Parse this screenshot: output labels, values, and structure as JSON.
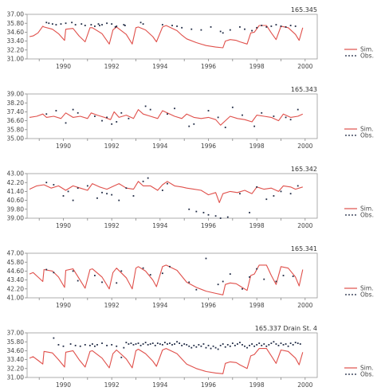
{
  "chart_data": [
    {
      "type": "line",
      "title": "165.345",
      "xlim": [
        1988.5,
        2000.5
      ],
      "ylim": [
        31.0,
        37.0
      ],
      "yticks": [
        "37.00",
        "35.80",
        "34.60",
        "33.40",
        "32.20",
        "31.00"
      ],
      "xticks": [
        "1990",
        "1992",
        "1994",
        "1996",
        "1998",
        "2000"
      ],
      "legend": [
        "Sim.",
        "Obs."
      ],
      "legend_position": "right",
      "colors": {
        "sim": "#e0504b",
        "obs": "#1f2a44"
      },
      "sim": {
        "x": [
          1988.6,
          1988.75,
          1988.95,
          1989.15,
          1989.2,
          1989.55,
          1989.8,
          1990.05,
          1990.1,
          1990.4,
          1990.65,
          1990.9,
          1991.1,
          1991.2,
          1991.6,
          1991.9,
          1992.05,
          1992.2,
          1992.6,
          1992.85,
          1993.0,
          1993.1,
          1993.4,
          1993.7,
          1993.85,
          1994.1,
          1994.25,
          1994.7,
          1994.9,
          1995.1,
          1995.5,
          1995.9,
          1996.3,
          1996.6,
          1996.7,
          1996.9,
          1997.15,
          1997.3,
          1997.6,
          1997.75,
          1997.9,
          1998.1,
          1998.4,
          1998.6,
          1998.8,
          1999.0,
          1999.3,
          1999.6,
          1999.75,
          1999.9
        ],
        "y": [
          34.0,
          34.1,
          34.5,
          35.4,
          35.3,
          35.0,
          34.4,
          33.5,
          35.0,
          35.1,
          34.1,
          33.3,
          35.2,
          35.2,
          34.4,
          33.0,
          34.9,
          35.3,
          34.3,
          33.0,
          35.2,
          35.3,
          34.9,
          34.0,
          33.3,
          35.3,
          35.5,
          34.8,
          34.2,
          33.7,
          33.2,
          32.8,
          32.6,
          32.5,
          33.4,
          33.6,
          33.5,
          33.3,
          33.0,
          34.5,
          34.6,
          35.5,
          35.5,
          34.5,
          33.6,
          35.4,
          35.2,
          34.3,
          33.5,
          35.2
        ]
      },
      "obs": {
        "x": [
          1989.3,
          1989.4,
          1989.55,
          1989.7,
          1989.9,
          1990.1,
          1990.35,
          1990.5,
          1990.75,
          1990.9,
          1991.15,
          1991.3,
          1991.45,
          1991.5,
          1991.6,
          1991.8,
          1992.0,
          1992.15,
          1992.2,
          1992.5,
          1992.55,
          1993.2,
          1993.3,
          1994.1,
          1994.5,
          1994.7,
          1994.9,
          1995.3,
          1995.7,
          1996.1,
          1996.5,
          1996.6,
          1996.9,
          1997.3,
          1997.5,
          1997.8,
          1998.0,
          1998.2,
          1998.4,
          1998.6,
          1998.8,
          1999.0,
          1999.2,
          1999.4,
          1999.6
        ],
        "y": [
          35.9,
          35.8,
          35.7,
          35.6,
          35.7,
          35.8,
          35.9,
          35.6,
          35.7,
          35.5,
          35.6,
          35.4,
          35.7,
          35.5,
          35.6,
          35.8,
          35.7,
          35.3,
          35.4,
          35.6,
          35.5,
          35.9,
          35.7,
          35.6,
          35.5,
          35.4,
          35.2,
          35.0,
          34.9,
          35.3,
          34.7,
          34.5,
          34.9,
          35.3,
          35.0,
          34.8,
          35.2,
          35.5,
          35.3,
          35.4,
          35.6,
          35.4,
          35.3,
          35.5,
          35.4
        ]
      }
    },
    {
      "type": "line",
      "title": "165.343",
      "xlim": [
        1988.5,
        2000.5
      ],
      "ylim": [
        35.0,
        39.0
      ],
      "yticks": [
        "39.00",
        "38.20",
        "37.40",
        "36.60",
        "35.80",
        "35.00"
      ],
      "xticks": [
        "1990",
        "1992",
        "1994",
        "1996",
        "1998",
        "2000"
      ],
      "legend": [
        "Sim.",
        "Obs."
      ],
      "legend_position": "right",
      "colors": {
        "sim": "#e0504b",
        "obs": "#1f2a44"
      },
      "sim": {
        "x": [
          1988.6,
          1988.9,
          1989.15,
          1989.3,
          1989.6,
          1989.9,
          1990.1,
          1990.4,
          1990.7,
          1991.0,
          1991.15,
          1991.4,
          1991.7,
          1991.95,
          1992.1,
          1992.3,
          1992.6,
          1992.9,
          1993.1,
          1993.3,
          1993.6,
          1993.9,
          1994.1,
          1994.3,
          1994.6,
          1994.9,
          1995.1,
          1995.4,
          1995.7,
          1996.0,
          1996.3,
          1996.5,
          1996.7,
          1996.9,
          1997.2,
          1997.5,
          1997.8,
          1998.0,
          1998.3,
          1998.6,
          1998.9,
          1999.1,
          1999.4,
          1999.7,
          1999.9
        ],
        "y": [
          36.9,
          37.0,
          37.2,
          36.9,
          37.0,
          36.8,
          37.3,
          36.9,
          37.0,
          36.8,
          37.3,
          37.1,
          36.9,
          36.7,
          37.4,
          36.9,
          37.1,
          36.8,
          37.6,
          37.2,
          37.0,
          36.8,
          37.5,
          37.3,
          37.0,
          36.8,
          37.2,
          36.9,
          36.8,
          36.9,
          36.7,
          36.2,
          36.6,
          37.0,
          36.8,
          36.7,
          36.5,
          37.1,
          37.0,
          36.9,
          36.6,
          37.2,
          36.9,
          37.0,
          37.2
        ]
      },
      "obs": {
        "x": [
          1989.3,
          1989.7,
          1990.1,
          1990.4,
          1990.6,
          1991.3,
          1991.6,
          1991.8,
          1992.0,
          1992.2,
          1992.4,
          1992.7,
          1993.4,
          1993.6,
          1994.3,
          1994.6,
          1995.2,
          1995.4,
          1996.0,
          1996.4,
          1996.7,
          1997.0,
          1997.4,
          1997.9,
          1998.2,
          1998.7,
          1999.2,
          1999.4,
          1999.7
        ],
        "y": [
          37.2,
          37.5,
          36.4,
          37.6,
          37.3,
          37.0,
          36.6,
          36.9,
          36.3,
          36.5,
          37.3,
          36.8,
          37.9,
          37.6,
          37.2,
          37.7,
          36.1,
          36.3,
          37.5,
          36.9,
          36.0,
          37.8,
          37.1,
          36.1,
          37.3,
          37.0,
          36.9,
          36.7,
          37.6
        ]
      }
    },
    {
      "type": "line",
      "title": "165.342",
      "xlim": [
        1988.5,
        2000.5
      ],
      "ylim": [
        39.0,
        43.0
      ],
      "yticks": [
        "43.00",
        "42.20",
        "41.40",
        "40.60",
        "39.80",
        "39.00"
      ],
      "xticks": [
        "1990",
        "1992",
        "1994",
        "1996",
        "1998",
        "2000"
      ],
      "legend": [
        "Sim.",
        "Obs."
      ],
      "legend_position": "right",
      "colors": {
        "sim": "#e0504b",
        "obs": "#1f2a44"
      },
      "sim": {
        "x": [
          1988.6,
          1988.9,
          1989.2,
          1989.5,
          1989.8,
          1990.1,
          1990.4,
          1990.7,
          1991.0,
          1991.2,
          1991.5,
          1991.8,
          1992.1,
          1992.3,
          1992.6,
          1992.9,
          1993.1,
          1993.3,
          1993.6,
          1993.9,
          1994.1,
          1994.3,
          1994.6,
          1994.9,
          1995.1,
          1995.4,
          1995.7,
          1996.0,
          1996.3,
          1996.45,
          1996.6,
          1996.9,
          1997.2,
          1997.5,
          1997.8,
          1998.0,
          1998.3,
          1998.6,
          1998.9,
          1999.1,
          1999.4,
          1999.6,
          1999.9
        ],
        "y": [
          41.6,
          41.9,
          42.0,
          41.7,
          41.9,
          41.5,
          41.9,
          41.7,
          41.5,
          42.1,
          41.8,
          41.6,
          41.9,
          42.1,
          41.7,
          41.6,
          42.3,
          41.9,
          41.9,
          41.5,
          42.0,
          42.3,
          41.9,
          41.8,
          41.7,
          41.6,
          41.5,
          41.1,
          41.3,
          40.4,
          41.2,
          41.4,
          41.3,
          41.5,
          41.2,
          41.8,
          41.6,
          41.7,
          41.4,
          41.9,
          41.8,
          41.6,
          41.8
        ]
      },
      "obs": {
        "x": [
          1989.3,
          1989.6,
          1990.0,
          1990.2,
          1990.4,
          1990.6,
          1991.0,
          1991.4,
          1991.6,
          1991.8,
          1992.0,
          1992.3,
          1992.6,
          1992.9,
          1993.3,
          1993.5,
          1994.1,
          1994.3,
          1995.2,
          1995.5,
          1995.8,
          1996.0,
          1996.3,
          1996.5,
          1996.8,
          1997.3,
          1997.7,
          1998.0,
          1998.4,
          1998.7,
          1999.0,
          1999.4,
          1999.7
        ],
        "y": [
          42.2,
          42.0,
          41.0,
          41.4,
          40.6,
          41.7,
          41.9,
          40.8,
          41.3,
          41.2,
          41.1,
          40.6,
          41.7,
          41.0,
          42.3,
          42.6,
          41.5,
          42.1,
          39.8,
          39.6,
          39.5,
          39.3,
          39.2,
          39.0,
          39.1,
          41.2,
          39.5,
          41.8,
          40.7,
          41.0,
          41.4,
          41.2,
          41.9
        ]
      }
    },
    {
      "type": "line",
      "title": "165.341",
      "xlim": [
        1988.5,
        2000.5
      ],
      "ylim": [
        41.0,
        47.0
      ],
      "yticks": [
        "47.00",
        "45.80",
        "44.60",
        "43.40",
        "42.20",
        "41.00"
      ],
      "xticks": [
        "1990",
        "1992",
        "1994",
        "1996",
        "1998",
        "2000"
      ],
      "legend": [
        "Sim.",
        "Obs."
      ],
      "legend_position": "right",
      "colors": {
        "sim": "#e0504b",
        "obs": "#1f2a44"
      },
      "sim": {
        "x": [
          1988.6,
          1988.75,
          1988.95,
          1989.15,
          1989.2,
          1989.55,
          1989.8,
          1990.05,
          1990.1,
          1990.4,
          1990.65,
          1990.9,
          1991.1,
          1991.2,
          1991.6,
          1991.9,
          1992.05,
          1992.2,
          1992.6,
          1992.85,
          1993.0,
          1993.1,
          1993.4,
          1993.7,
          1993.85,
          1994.1,
          1994.25,
          1994.7,
          1994.9,
          1995.1,
          1995.5,
          1995.9,
          1996.3,
          1996.6,
          1996.7,
          1996.9,
          1997.15,
          1997.3,
          1997.6,
          1997.75,
          1997.9,
          1998.1,
          1998.4,
          1998.6,
          1998.8,
          1999.0,
          1999.3,
          1999.6,
          1999.75,
          1999.9
        ],
        "y": [
          44.2,
          44.4,
          43.8,
          43.2,
          44.8,
          44.6,
          43.8,
          42.4,
          44.7,
          44.9,
          43.6,
          42.3,
          44.8,
          44.9,
          43.8,
          42.2,
          44.4,
          45.0,
          43.7,
          42.2,
          45.0,
          45.2,
          44.6,
          43.4,
          42.5,
          45.2,
          45.4,
          44.7,
          43.9,
          43.1,
          42.4,
          41.9,
          41.6,
          41.4,
          42.8,
          43.0,
          42.9,
          42.6,
          42.0,
          44.0,
          44.2,
          45.4,
          45.4,
          44.0,
          42.8,
          45.2,
          45.0,
          43.8,
          42.6,
          44.8
        ]
      },
      "obs": {
        "x": [
          1989.3,
          1989.6,
          1990.4,
          1990.6,
          1991.3,
          1991.6,
          1992.2,
          1992.4,
          1993.3,
          1993.6,
          1994.1,
          1994.4,
          1995.2,
          1995.5,
          1995.9,
          1996.4,
          1996.6,
          1996.9,
          1997.4,
          1997.7,
          1998.0,
          1998.3,
          1998.8,
          1999.1,
          1999.5
        ],
        "y": [
          44.8,
          44.4,
          44.6,
          43.3,
          44.0,
          43.1,
          43.0,
          44.6,
          45.0,
          44.1,
          44.3,
          45.2,
          43.1,
          42.1,
          46.3,
          42.8,
          43.2,
          44.2,
          42.2,
          43.8,
          44.9,
          43.5,
          43.2,
          44.0,
          43.9
        ]
      }
    },
    {
      "type": "line",
      "title": "165.337 Drain St. 4",
      "xlim": [
        1988.5,
        2000.5
      ],
      "ylim": [
        31.0,
        37.0
      ],
      "yticks": [
        "37.00",
        "35.80",
        "34.60",
        "33.40",
        "32.20",
        "31.00"
      ],
      "xticks": [
        "1990",
        "1992",
        "1994",
        "1996",
        "1998",
        "2000"
      ],
      "legend": [
        "Sim.",
        "Obs."
      ],
      "legend_position": "right",
      "colors": {
        "sim": "#e0504b",
        "obs": "#1f2a44"
      },
      "sim": {
        "x": [
          1988.6,
          1988.75,
          1988.95,
          1989.15,
          1989.2,
          1989.55,
          1989.8,
          1990.05,
          1990.1,
          1990.4,
          1990.65,
          1990.9,
          1991.1,
          1991.2,
          1991.6,
          1991.9,
          1992.05,
          1992.2,
          1992.6,
          1992.85,
          1993.0,
          1993.1,
          1993.4,
          1993.7,
          1993.85,
          1994.1,
          1994.25,
          1994.7,
          1994.9,
          1995.1,
          1995.5,
          1995.9,
          1996.3,
          1996.6,
          1996.7,
          1996.9,
          1997.15,
          1997.3,
          1997.6,
          1997.75,
          1997.9,
          1998.1,
          1998.4,
          1998.6,
          1998.8,
          1999.0,
          1999.3,
          1999.6,
          1999.75,
          1999.9
        ],
        "y": [
          33.6,
          33.8,
          33.3,
          32.8,
          34.5,
          34.3,
          33.4,
          32.4,
          34.4,
          34.6,
          33.4,
          32.4,
          34.5,
          34.6,
          33.6,
          32.3,
          34.2,
          34.7,
          33.5,
          32.3,
          34.6,
          34.8,
          34.2,
          33.2,
          32.5,
          34.7,
          34.9,
          34.2,
          33.5,
          32.8,
          32.2,
          31.8,
          31.6,
          31.5,
          32.9,
          33.1,
          33.0,
          32.7,
          32.2,
          33.9,
          34.1,
          34.9,
          34.9,
          33.9,
          32.9,
          34.7,
          34.5,
          33.6,
          32.7,
          34.4
        ]
      },
      "obs": {
        "x": [
          1989.6,
          1989.8,
          1990.0,
          1990.3,
          1990.5,
          1990.7,
          1990.9,
          1991.1,
          1991.2,
          1991.3,
          1991.4,
          1991.6,
          1991.8,
          1992.0,
          1992.2,
          1992.4,
          1992.5,
          1992.6,
          1992.7,
          1992.8,
          1992.9,
          1993.0,
          1993.1,
          1993.2,
          1993.3,
          1993.4,
          1993.5,
          1993.6,
          1993.7,
          1993.8,
          1993.9,
          1994.0,
          1994.1,
          1994.2,
          1994.3,
          1994.4,
          1994.5,
          1994.6,
          1994.7,
          1994.8,
          1994.9,
          1995.0,
          1995.1,
          1995.2,
          1995.3,
          1995.4,
          1995.5,
          1995.6,
          1995.7,
          1995.8,
          1995.9,
          1996.0,
          1996.1,
          1996.2,
          1996.3,
          1996.4,
          1996.5,
          1996.6,
          1996.7,
          1996.8,
          1996.9,
          1997.0,
          1997.1,
          1997.2,
          1997.3,
          1997.4,
          1997.5,
          1997.6,
          1997.7,
          1997.8,
          1997.9,
          1998.0,
          1998.1,
          1998.2,
          1998.3,
          1998.4,
          1998.5,
          1998.6,
          1998.7,
          1998.8,
          1998.9,
          1999.0,
          1999.1,
          1999.2,
          1999.3,
          1999.4,
          1999.5,
          1999.6,
          1999.7,
          1999.8
        ],
        "y": [
          36.3,
          35.4,
          35.2,
          35.5,
          35.3,
          35.2,
          35.4,
          35.3,
          35.5,
          35.2,
          35.4,
          35.6,
          35.3,
          35.4,
          35.2,
          33.7,
          35.0,
          35.7,
          35.5,
          35.6,
          35.4,
          35.5,
          35.6,
          35.3,
          35.5,
          35.7,
          35.4,
          35.5,
          35.6,
          35.3,
          35.6,
          35.5,
          35.4,
          35.7,
          35.5,
          35.6,
          35.4,
          35.5,
          35.8,
          35.6,
          35.3,
          35.5,
          35.4,
          35.2,
          35.0,
          35.3,
          35.1,
          35.4,
          35.2,
          35.5,
          35.0,
          35.3,
          34.9,
          35.2,
          35.0,
          34.8,
          35.3,
          35.5,
          35.1,
          35.4,
          35.2,
          35.6,
          35.3,
          35.5,
          35.7,
          35.4,
          35.2,
          35.0,
          35.3,
          35.5,
          35.2,
          35.4,
          35.6,
          35.3,
          35.5,
          35.2,
          35.4,
          35.6,
          35.8,
          35.5,
          35.3,
          35.6,
          35.4,
          35.5,
          35.2,
          35.6,
          35.4,
          35.7,
          35.6,
          35.5
        ]
      }
    }
  ]
}
